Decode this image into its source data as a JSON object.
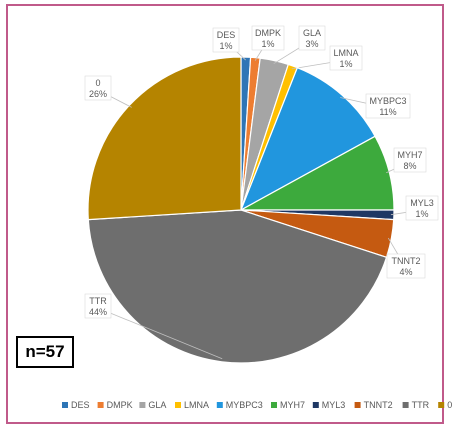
{
  "chart_data": {
    "type": "pie",
    "slices": [
      {
        "label": "DES",
        "value": 1,
        "display": "1%",
        "color": "#2E75B6"
      },
      {
        "label": "DMPK",
        "value": 1,
        "display": "1%",
        "color": "#ED7D31"
      },
      {
        "label": "GLA",
        "value": 3,
        "display": "3%",
        "color": "#A5A5A5"
      },
      {
        "label": "LMNA",
        "value": 1,
        "display": "1%",
        "color": "#FFC000"
      },
      {
        "label": "MYBPC3",
        "value": 11,
        "display": "11%",
        "color": "#2196DE"
      },
      {
        "label": "MYH7",
        "value": 8,
        "display": "8%",
        "color": "#3DAA3D"
      },
      {
        "label": "MYL3",
        "value": 1,
        "display": "1%",
        "color": "#1F3864"
      },
      {
        "label": "TNNT2",
        "value": 4,
        "display": "4%",
        "color": "#C55A11"
      },
      {
        "label": "TTR",
        "value": 44,
        "display": "44%",
        "color": "#6E6E6E"
      },
      {
        "label": "0",
        "value": 26,
        "display": "26%",
        "color": "#B58400"
      }
    ],
    "legend_position": "bottom"
  },
  "n_label": "n=57"
}
